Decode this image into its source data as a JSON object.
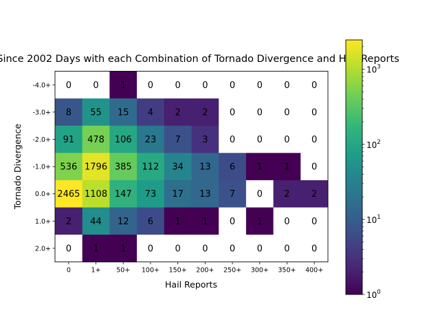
{
  "chart_data": {
    "type": "heatmap",
    "title": "Since 2002 Days with each Combination of Tornado Divergence and Hail Reports",
    "xlabel": "Hail Reports",
    "ylabel": "Tornado Divergence",
    "x_categories": [
      "0",
      "1+",
      "50+",
      "100+",
      "150+",
      "200+",
      "250+",
      "300+",
      "350+",
      "400+"
    ],
    "y_categories": [
      "-4.0+",
      "-3.0+",
      "-2.0+",
      "-1.0+",
      "0.0+",
      "1.0+",
      "2.0+"
    ],
    "values": [
      [
        0,
        0,
        1,
        0,
        0,
        0,
        0,
        0,
        0,
        0
      ],
      [
        8,
        55,
        15,
        4,
        2,
        2,
        0,
        0,
        0,
        0
      ],
      [
        91,
        478,
        106,
        23,
        7,
        3,
        0,
        0,
        0,
        0
      ],
      [
        536,
        1796,
        385,
        112,
        34,
        13,
        6,
        1,
        1,
        0
      ],
      [
        2465,
        1108,
        147,
        73,
        17,
        13,
        7,
        0,
        2,
        2
      ],
      [
        2,
        44,
        12,
        6,
        1,
        1,
        0,
        1,
        0,
        0
      ],
      [
        0,
        1,
        1,
        0,
        0,
        0,
        0,
        0,
        0,
        0
      ]
    ],
    "color_scale": "log",
    "colormap": "viridis",
    "zero_color": "#ffffff",
    "colorbar": {
      "range": [
        1,
        2465
      ],
      "ticks": [
        {
          "value": 1,
          "base": "10",
          "exp": "0"
        },
        {
          "value": 10,
          "base": "10",
          "exp": "1"
        },
        {
          "value": 100,
          "base": "10",
          "exp": "2"
        },
        {
          "value": 1000,
          "base": "10",
          "exp": "3"
        }
      ]
    }
  }
}
